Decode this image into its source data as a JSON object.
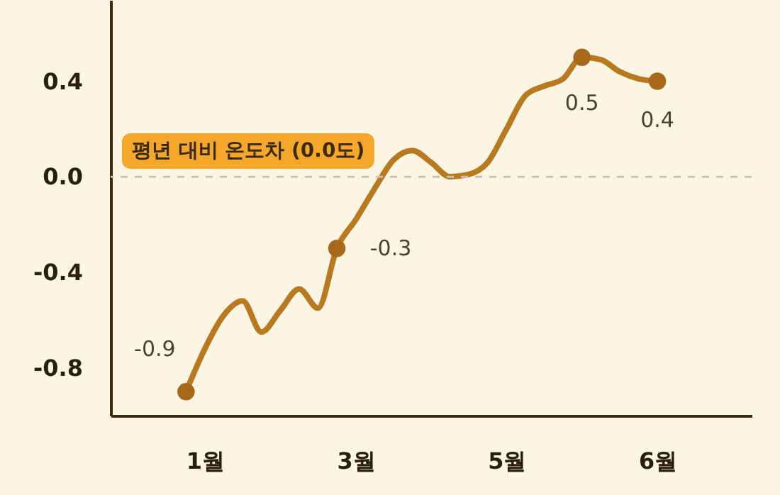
{
  "chart_data": {
    "type": "line",
    "categories": [
      null,
      null,
      null,
      null,
      "1월",
      null,
      null,
      null,
      null,
      null,
      null,
      null,
      "3월",
      null,
      null,
      null,
      null,
      null,
      null,
      null,
      "5월",
      null,
      null,
      null,
      null,
      null,
      null,
      null,
      "6월",
      null,
      null,
      null,
      null
    ],
    "ylim": [
      -1.0,
      0.74
    ],
    "yticks": [
      {
        "value": 0.4,
        "label": "0.4"
      },
      {
        "value": 0.0,
        "label": "0.0"
      },
      {
        "value": -0.4,
        "label": "-0.4"
      },
      {
        "value": -0.8,
        "label": "-0.8"
      }
    ],
    "series": [
      {
        "color": "#b97a1f",
        "values": [
          null,
          null,
          null,
          -0.9,
          -0.72,
          -0.58,
          -0.52,
          -0.65,
          -0.56,
          -0.47,
          -0.55,
          -0.3,
          -0.18,
          -0.05,
          0.07,
          0.11,
          0.06,
          0.0,
          0.01,
          0.06,
          0.2,
          0.34,
          0.38,
          0.41,
          0.5,
          0.49,
          0.44,
          0.41,
          0.4,
          null,
          null,
          null,
          null
        ]
      },
      {
        "type": "scatter",
        "color": "#a8681a",
        "values": [
          null,
          null,
          null,
          -0.9,
          null,
          null,
          null,
          null,
          null,
          null,
          null,
          -0.3,
          null,
          null,
          null,
          null,
          null,
          null,
          null,
          null,
          null,
          null,
          null,
          null,
          0.5,
          null,
          null,
          null,
          0.4,
          null,
          null,
          null,
          null
        ],
        "value_labels": [
          null,
          null,
          null,
          "-0.9",
          null,
          null,
          null,
          null,
          null,
          null,
          null,
          "-0.3",
          null,
          null,
          null,
          null,
          null,
          null,
          null,
          null,
          null,
          null,
          null,
          null,
          "0.5",
          null,
          null,
          null,
          "0.4",
          null,
          null,
          null,
          null
        ]
      }
    ],
    "ref_lines": [
      {
        "axis": "y",
        "value": 0.0,
        "label": "평년 대비 온도차 (0.0도)",
        "color": "#c8c0b0",
        "line_style": "dashed"
      }
    ],
    "grid": false,
    "line_style": "solid"
  }
}
